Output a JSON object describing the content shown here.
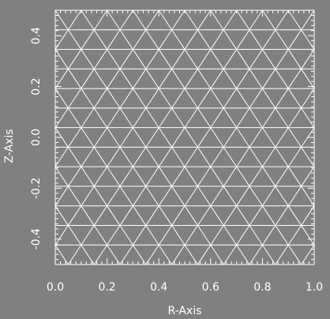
{
  "chart_data": {
    "type": "mesh",
    "xlabel": "R-Axis",
    "ylabel": "Z-Axis",
    "xlim": [
      0.0,
      1.0
    ],
    "ylim": [
      -0.5,
      0.5
    ],
    "x_tick_labels": [
      "0.0",
      "0.2",
      "0.4",
      "0.6",
      "0.8",
      "1.0"
    ],
    "x_tick_values": [
      0.0,
      0.2,
      0.4,
      0.6,
      0.8,
      1.0
    ],
    "y_tick_labels": [
      "-0.4",
      "-0.2",
      "0.0",
      "0.2",
      "0.4"
    ],
    "y_tick_values": [
      -0.4,
      -0.2,
      0.0,
      0.2,
      0.4
    ],
    "mesh": "triangular",
    "grid": false
  },
  "colors": {
    "background": "#808080",
    "mesh_lines": "#ffffff",
    "text": "#ffffff"
  }
}
